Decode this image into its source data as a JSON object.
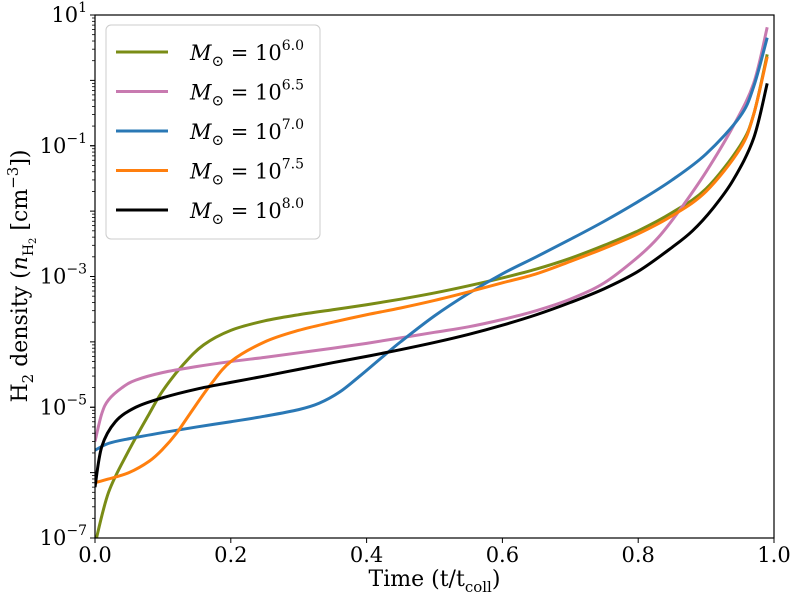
{
  "chart_data": {
    "type": "line",
    "xlabel": "Time (t/t",
    "xlabel_subscript": "coll",
    "xlabel_close": ")",
    "ylabel_prefix": "H",
    "ylabel_prefix_sub": "2",
    "ylabel_mid": " density (",
    "ylabel_n": "n",
    "ylabel_n_sub": "H",
    "ylabel_n_subsub": "2",
    "ylabel_unit": " [cm",
    "ylabel_unit_sup": "−3",
    "ylabel_close": "])",
    "xlim": [
      0.0,
      1.0
    ],
    "ylim": [
      1e-07,
      10
    ],
    "yscale": "log",
    "grid": false,
    "legend_position": "upper-left",
    "x_ticks": [
      {
        "value": 0.0,
        "label": "0.0"
      },
      {
        "value": 0.2,
        "label": "0.2"
      },
      {
        "value": 0.4,
        "label": "0.4"
      },
      {
        "value": 0.6,
        "label": "0.6"
      },
      {
        "value": 0.8,
        "label": "0.8"
      },
      {
        "value": 1.0,
        "label": "1.0"
      }
    ],
    "y_ticks": [
      {
        "value": 1e-07,
        "base": "10",
        "exp": "−7"
      },
      {
        "value": 1e-05,
        "base": "10",
        "exp": "−5"
      },
      {
        "value": 0.001,
        "base": "10",
        "exp": "−3"
      },
      {
        "value": 0.1,
        "base": "10",
        "exp": "−1"
      },
      {
        "value": 10,
        "base": "10",
        "exp": "1"
      }
    ],
    "series": [
      {
        "name": "M⊙ = 10^6.0",
        "label_prefix": "M",
        "label_sub": "⊙",
        "label_eq": " = 10",
        "label_exp": "6.0",
        "color": "#7a8c16",
        "x": [
          0.0,
          0.02,
          0.05,
          0.08,
          0.1,
          0.13,
          0.16,
          0.2,
          0.25,
          0.3,
          0.35,
          0.4,
          0.45,
          0.5,
          0.55,
          0.6,
          0.65,
          0.7,
          0.75,
          0.8,
          0.85,
          0.9,
          0.95,
          0.97,
          0.99
        ],
        "y": [
          8e-08,
          5e-07,
          2.2e-06,
          8e-06,
          1.8e-05,
          4.5e-05,
          9e-05,
          0.00015,
          0.00021,
          0.00026,
          0.00031,
          0.00037,
          0.00045,
          0.00056,
          0.00072,
          0.00095,
          0.0013,
          0.0019,
          0.003,
          0.005,
          0.0095,
          0.022,
          0.1,
          0.3,
          2.5
        ]
      },
      {
        "name": "M⊙ = 10^6.5",
        "label_prefix": "M",
        "label_sub": "⊙",
        "label_eq": " = 10",
        "label_exp": "6.5",
        "color": "#c87ab0",
        "x": [
          0.0,
          0.01,
          0.02,
          0.04,
          0.06,
          0.1,
          0.15,
          0.2,
          0.25,
          0.3,
          0.35,
          0.4,
          0.45,
          0.5,
          0.55,
          0.6,
          0.65,
          0.7,
          0.75,
          0.8,
          0.83,
          0.86,
          0.9,
          0.94,
          0.97,
          0.99
        ],
        "y": [
          3e-06,
          8e-06,
          1.3e-05,
          2e-05,
          2.6e-05,
          3.4e-05,
          4.2e-05,
          5e-05,
          5.8e-05,
          6.8e-05,
          8e-05,
          9.5e-05,
          0.000115,
          0.00014,
          0.00017,
          0.00022,
          0.0003,
          0.00045,
          0.0008,
          0.002,
          0.004,
          0.01,
          0.04,
          0.2,
          0.9,
          6.5
        ]
      },
      {
        "name": "M⊙ = 10^7.0",
        "label_prefix": "M",
        "label_sub": "⊙",
        "label_eq": " = 10",
        "label_exp": "7.0",
        "color": "#2a78b5",
        "x": [
          0.0,
          0.02,
          0.05,
          0.1,
          0.15,
          0.2,
          0.25,
          0.3,
          0.33,
          0.36,
          0.39,
          0.42,
          0.45,
          0.5,
          0.55,
          0.6,
          0.65,
          0.7,
          0.75,
          0.8,
          0.85,
          0.9,
          0.95,
          0.97,
          0.99
        ],
        "y": [
          2.2e-06,
          2.8e-06,
          3.3e-06,
          4.1e-06,
          5e-06,
          6e-06,
          7.3e-06,
          9.2e-06,
          1.15e-05,
          1.7e-05,
          3e-05,
          5.5e-05,
          0.0001,
          0.00025,
          0.00055,
          0.0011,
          0.002,
          0.0037,
          0.007,
          0.014,
          0.03,
          0.075,
          0.28,
          0.8,
          4.5
        ]
      },
      {
        "name": "M⊙ = 10^7.5",
        "label_prefix": "M",
        "label_sub": "⊙",
        "label_eq": " = 10",
        "label_exp": "7.5",
        "color": "#ff7f0e",
        "x": [
          0.0,
          0.02,
          0.05,
          0.08,
          0.1,
          0.12,
          0.14,
          0.17,
          0.2,
          0.25,
          0.3,
          0.35,
          0.4,
          0.45,
          0.5,
          0.55,
          0.6,
          0.65,
          0.7,
          0.75,
          0.8,
          0.85,
          0.9,
          0.95,
          0.97,
          0.99
        ],
        "y": [
          7e-07,
          8e-07,
          1e-06,
          1.5e-06,
          2.3e-06,
          4e-06,
          8e-06,
          2.2e-05,
          5e-05,
          0.0001,
          0.00015,
          0.0002,
          0.00026,
          0.00033,
          0.00043,
          0.00058,
          0.0008,
          0.0011,
          0.0017,
          0.0027,
          0.0045,
          0.0085,
          0.02,
          0.09,
          0.3,
          2.3
        ]
      },
      {
        "name": "M⊙ = 10^8.0",
        "label_prefix": "M",
        "label_sub": "⊙",
        "label_eq": " = 10",
        "label_exp": "8.0",
        "color": "#000000",
        "x": [
          0.0,
          0.01,
          0.03,
          0.06,
          0.1,
          0.15,
          0.2,
          0.25,
          0.3,
          0.35,
          0.4,
          0.45,
          0.5,
          0.55,
          0.6,
          0.65,
          0.7,
          0.75,
          0.8,
          0.85,
          0.88,
          0.91,
          0.94,
          0.97,
          0.99
        ],
        "y": [
          6e-07,
          2.5e-06,
          6e-06,
          1e-05,
          1.4e-05,
          1.9e-05,
          2.4e-05,
          3e-05,
          3.8e-05,
          4.8e-05,
          6e-05,
          7.6e-05,
          9.8e-05,
          0.00013,
          0.00018,
          0.00026,
          0.0004,
          0.00065,
          0.0012,
          0.0028,
          0.005,
          0.011,
          0.03,
          0.13,
          0.9
        ]
      }
    ]
  }
}
